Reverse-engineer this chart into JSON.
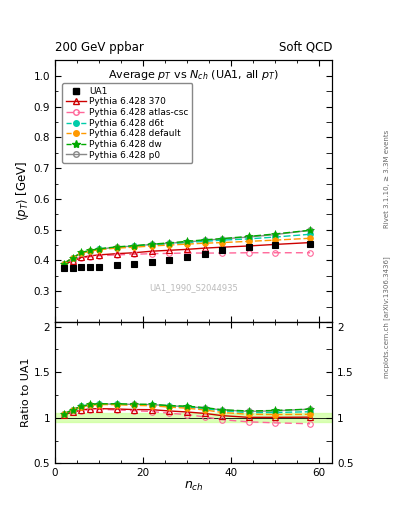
{
  "title_top_left": "200 GeV ppbar",
  "title_top_right": "Soft QCD",
  "main_title": "Average p$_T$ vs N$_{ch}$ (UA1, all p$_T$)",
  "ylabel_main": "<p_T> [GeV]",
  "ylabel_ratio": "Ratio to UA1",
  "xlabel": "n_{ch}",
  "right_label_top": "Rivet 3.1.10, ≥ 3.3M events",
  "right_label_bot": "mcplots.cern.ch [arXiv:1306.3436]",
  "watermark": "UA1_1990_S2044935",
  "ylim_main": [
    0.2,
    1.05
  ],
  "ylim_ratio": [
    0.5,
    2.05
  ],
  "yticks_main": [
    0.2,
    0.3,
    0.4,
    0.5,
    0.6,
    0.7,
    0.8,
    0.9,
    1.0
  ],
  "yticks_ratio": [
    0.5,
    1.0,
    1.5,
    2.0
  ],
  "xlim": [
    0,
    63
  ],
  "xticks": [
    0,
    20,
    40,
    60
  ],
  "UA1_x": [
    2,
    4,
    6,
    8,
    10,
    14,
    18,
    22,
    26,
    30,
    34,
    38,
    44,
    50,
    58
  ],
  "UA1_y": [
    0.375,
    0.375,
    0.378,
    0.378,
    0.38,
    0.385,
    0.39,
    0.395,
    0.403,
    0.41,
    0.42,
    0.433,
    0.445,
    0.45,
    0.455
  ],
  "p370_x": [
    2,
    4,
    6,
    8,
    10,
    14,
    18,
    22,
    26,
    30,
    34,
    38,
    44,
    50,
    58
  ],
  "p370_y": [
    0.388,
    0.398,
    0.41,
    0.415,
    0.418,
    0.422,
    0.425,
    0.43,
    0.433,
    0.436,
    0.44,
    0.443,
    0.447,
    0.452,
    0.458
  ],
  "patlas_x": [
    2,
    4,
    6,
    8,
    10,
    14,
    18,
    22,
    26,
    30,
    34,
    38,
    44,
    50,
    58
  ],
  "patlas_y": [
    0.388,
    0.398,
    0.408,
    0.412,
    0.415,
    0.418,
    0.42,
    0.422,
    0.423,
    0.424,
    0.424,
    0.424,
    0.425,
    0.425,
    0.425
  ],
  "pd6t_x": [
    2,
    4,
    6,
    8,
    10,
    14,
    18,
    22,
    26,
    30,
    34,
    38,
    44,
    50,
    58
  ],
  "pd6t_y": [
    0.39,
    0.408,
    0.425,
    0.432,
    0.437,
    0.442,
    0.446,
    0.45,
    0.454,
    0.458,
    0.462,
    0.466,
    0.47,
    0.476,
    0.485
  ],
  "pdef_x": [
    2,
    4,
    6,
    8,
    10,
    14,
    18,
    22,
    26,
    30,
    34,
    38,
    44,
    50,
    58
  ],
  "pdef_y": [
    0.39,
    0.408,
    0.423,
    0.43,
    0.435,
    0.44,
    0.443,
    0.447,
    0.45,
    0.453,
    0.456,
    0.458,
    0.462,
    0.466,
    0.472
  ],
  "pdw_x": [
    2,
    4,
    6,
    8,
    10,
    14,
    18,
    22,
    26,
    30,
    34,
    38,
    44,
    50,
    58
  ],
  "pdw_y": [
    0.39,
    0.408,
    0.426,
    0.433,
    0.438,
    0.444,
    0.448,
    0.453,
    0.457,
    0.462,
    0.467,
    0.471,
    0.478,
    0.486,
    0.498
  ],
  "pp0_x": [
    2,
    4,
    6,
    8,
    10,
    14,
    18,
    22,
    26,
    30,
    34,
    38,
    44,
    50,
    58
  ],
  "pp0_y": [
    0.39,
    0.408,
    0.425,
    0.432,
    0.437,
    0.443,
    0.447,
    0.452,
    0.456,
    0.46,
    0.465,
    0.47,
    0.476,
    0.484,
    0.498
  ],
  "color_UA1": "#000000",
  "color_370": "#cc0000",
  "color_atlas": "#ff6699",
  "color_d6t": "#00ccaa",
  "color_default": "#ff9900",
  "color_dw": "#00aa00",
  "color_p0": "#888888",
  "ratio_band_color": "#ccff99",
  "ratio_band_alpha": 0.7
}
